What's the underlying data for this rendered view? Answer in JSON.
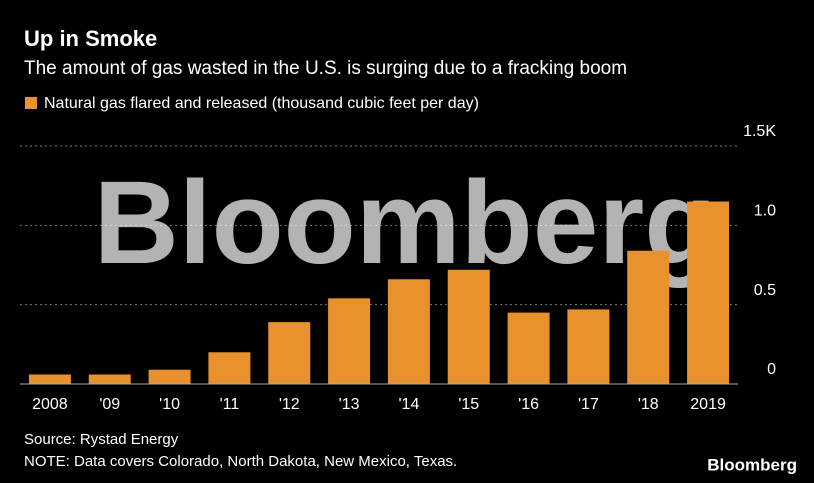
{
  "chart_data": {
    "type": "bar",
    "title": "Up in Smoke",
    "subtitle": "The amount of gas wasted in the U.S. is surging due to a fracking boom",
    "series": [
      {
        "name": "Natural gas flared and released (thousand cubic feet per day)",
        "color": "#e8912d",
        "values": [
          0.06,
          0.06,
          0.09,
          0.2,
          0.39,
          0.54,
          0.66,
          0.72,
          0.45,
          0.47,
          0.84,
          1.15
        ]
      }
    ],
    "categories": [
      "2008",
      "'09",
      "'10",
      "'11",
      "'12",
      "'13",
      "'14",
      "'15",
      "'16",
      "'17",
      "'18",
      "2019"
    ],
    "ylim": [
      0,
      1.5
    ],
    "yticks": [
      0,
      0.5,
      {
        "value": 1,
        "label": "1.0"
      },
      {
        "value": 1.5,
        "label": "1.5K"
      }
    ],
    "grid": true,
    "source": "Source: Rystad Energy",
    "note": "NOTE: Data covers Colorado, North Dakota, New Mexico, Texas.",
    "watermark": "Bloomberg",
    "logo": "Bloomberg"
  }
}
